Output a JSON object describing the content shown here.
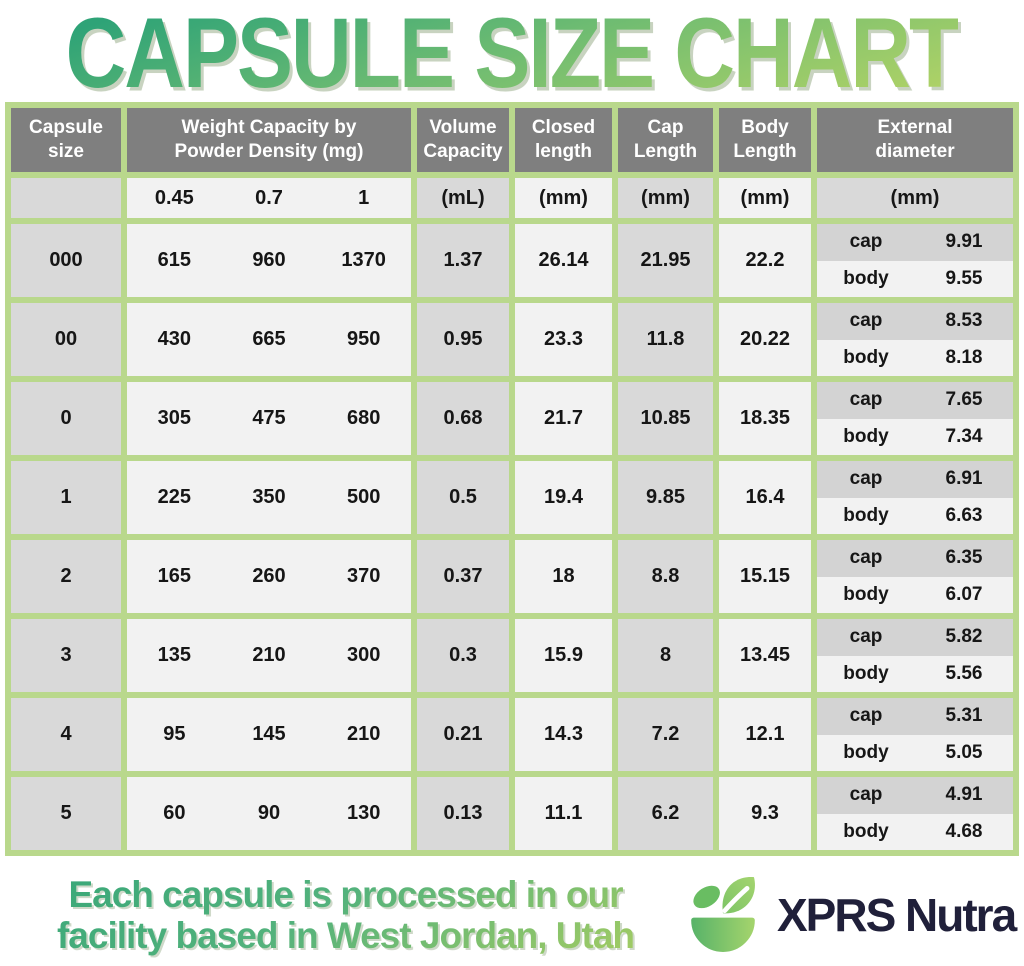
{
  "chart_data": {
    "type": "table",
    "title": "CAPSULE SIZE CHART",
    "columns": [
      "Capsule size",
      "Weight Capacity by Powder Density (mg) 0.45",
      "Weight Capacity by Powder Density (mg) 0.7",
      "Weight Capacity by Powder Density (mg) 1",
      "Volume Capacity (mL)",
      "Closed length (mm)",
      "Cap Length (mm)",
      "Body Length (mm)",
      "External diameter cap (mm)",
      "External diameter body (mm)"
    ],
    "rows": [
      {
        "size": "000",
        "d045": "615",
        "d07": "960",
        "d1": "1370",
        "vol": "1.37",
        "closed": "26.14",
        "cap_len": "21.95",
        "body_len": "22.2",
        "ext_cap": "9.91",
        "ext_body": "9.55"
      },
      {
        "size": "00",
        "d045": "430",
        "d07": "665",
        "d1": "950",
        "vol": "0.95",
        "closed": "23.3",
        "cap_len": "11.8",
        "body_len": "20.22",
        "ext_cap": "8.53",
        "ext_body": "8.18"
      },
      {
        "size": "0",
        "d045": "305",
        "d07": "475",
        "d1": "680",
        "vol": "0.68",
        "closed": "21.7",
        "cap_len": "10.85",
        "body_len": "18.35",
        "ext_cap": "7.65",
        "ext_body": "7.34"
      },
      {
        "size": "1",
        "d045": "225",
        "d07": "350",
        "d1": "500",
        "vol": "0.5",
        "closed": "19.4",
        "cap_len": "9.85",
        "body_len": "16.4",
        "ext_cap": "6.91",
        "ext_body": "6.63"
      },
      {
        "size": "2",
        "d045": "165",
        "d07": "260",
        "d1": "370",
        "vol": "0.37",
        "closed": "18",
        "cap_len": "8.8",
        "body_len": "15.15",
        "ext_cap": "6.35",
        "ext_body": "6.07"
      },
      {
        "size": "3",
        "d045": "135",
        "d07": "210",
        "d1": "300",
        "vol": "0.3",
        "closed": "15.9",
        "cap_len": "8",
        "body_len": "13.45",
        "ext_cap": "5.82",
        "ext_body": "5.56"
      },
      {
        "size": "4",
        "d045": "95",
        "d07": "145",
        "d1": "210",
        "vol": "0.21",
        "closed": "14.3",
        "cap_len": "7.2",
        "body_len": "12.1",
        "ext_cap": "5.31",
        "ext_body": "5.05"
      },
      {
        "size": "5",
        "d045": "60",
        "d07": "90",
        "d1": "130",
        "vol": "0.13",
        "closed": "11.1",
        "cap_len": "6.2",
        "body_len": "9.3",
        "ext_cap": "4.91",
        "ext_body": "4.68"
      }
    ]
  },
  "header": {
    "capsule_size": "Capsule size",
    "weight_line1": "Weight Capacity by",
    "weight_line2": "Powder Density (mg)",
    "volume_line1": "Volume",
    "volume_line2": "Capacity",
    "closed_line1": "Closed",
    "closed_line2": "length",
    "cap_line1": "Cap",
    "cap_line2": "Length",
    "body_line1": "Body",
    "body_line2": "Length",
    "ext_line1": "External",
    "ext_line2": "diameter",
    "densities": [
      "0.45",
      "0.7",
      "1"
    ],
    "unit_ml": "(mL)",
    "unit_mm": "(mm)",
    "cap_label": "cap",
    "body_label": "body"
  },
  "footer": {
    "line1": "Each capsule is processed in our",
    "line2": "facility based in West Jordan, Utah",
    "brand": "XPRS Nutra"
  },
  "colors": {
    "grid_green": "#b9d88c",
    "header_gray": "#7f7f7f",
    "cell_gray": "#d9d9d9",
    "cell_light": "#f2f2f2",
    "ext_cap_gray": "#d3d3d3",
    "brand_navy": "#20203a",
    "grad_top": "#2ea377",
    "grad_bottom": "#b5d465"
  }
}
